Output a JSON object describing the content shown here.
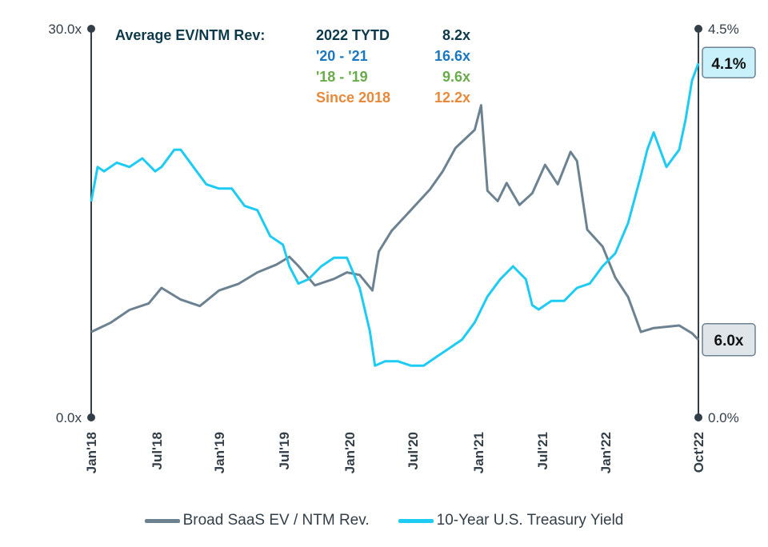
{
  "chart_data": {
    "type": "line",
    "x_ticks": [
      "Jan'18",
      "Jul'18",
      "Jan'19",
      "Jul'19",
      "Jan'20",
      "Jul'20",
      "Jan'21",
      "Jul'21",
      "Jan'22",
      "Oct'22"
    ],
    "y_left": {
      "ticks": [
        "30.0x",
        "0.0x"
      ],
      "ylim": [
        0,
        30
      ]
    },
    "y_right": {
      "ticks": [
        "4.5%",
        "0.0%"
      ],
      "ylim": [
        0,
        4.5
      ]
    },
    "annotation": {
      "header": "Average EV/NTM Rev:",
      "rows": [
        {
          "label": "2022 TYTD",
          "value": "8.2x",
          "color": "#0d3a4a"
        },
        {
          "label": "'20 - '21",
          "value": "16.6x",
          "color": "#1a78c2"
        },
        {
          "label": "'18 - '19",
          "value": "9.6x",
          "color": "#6aab4a"
        },
        {
          "label": "Since 2018",
          "value": "12.2x",
          "color": "#e8893a"
        }
      ]
    },
    "end_labels": {
      "yield": "4.1%",
      "saas": "6.0x"
    },
    "series": [
      {
        "name": "Broad SaaS EV / NTM Rev.",
        "axis": "left",
        "color": "#6d8291",
        "x": [
          2018.0,
          2018.15,
          2018.3,
          2018.45,
          2018.55,
          2018.7,
          2018.85,
          2019.0,
          2019.15,
          2019.3,
          2019.45,
          2019.55,
          2019.62,
          2019.75,
          2019.9,
          2020.0,
          2020.1,
          2020.2,
          2020.25,
          2020.35,
          2020.5,
          2020.65,
          2020.75,
          2020.85,
          2021.0,
          2021.05,
          2021.1,
          2021.18,
          2021.25,
          2021.35,
          2021.45,
          2021.55,
          2021.65,
          2021.75,
          2021.8,
          2021.88,
          2022.0,
          2022.1,
          2022.2,
          2022.3,
          2022.4,
          2022.5,
          2022.6,
          2022.7,
          2022.75
        ],
        "values": [
          6.6,
          7.3,
          8.3,
          8.8,
          10.0,
          9.1,
          8.6,
          9.8,
          10.3,
          11.2,
          11.8,
          12.4,
          11.7,
          10.2,
          10.7,
          11.2,
          11.0,
          9.8,
          12.8,
          14.4,
          16.0,
          17.6,
          19.0,
          20.8,
          22.2,
          24.1,
          17.5,
          16.7,
          18.1,
          16.4,
          17.3,
          19.5,
          18.0,
          20.5,
          19.8,
          14.5,
          13.2,
          10.8,
          9.3,
          6.6,
          6.9,
          7.0,
          7.1,
          6.5,
          6.0
        ]
      },
      {
        "name": "10-Year U.S. Treasury Yield",
        "axis": "right",
        "color": "#1ecbf2",
        "x": [
          2018.0,
          2018.05,
          2018.1,
          2018.2,
          2018.3,
          2018.4,
          2018.5,
          2018.55,
          2018.65,
          2018.7,
          2018.8,
          2018.9,
          2019.0,
          2019.1,
          2019.2,
          2019.3,
          2019.4,
          2019.5,
          2019.55,
          2019.62,
          2019.7,
          2019.8,
          2019.9,
          2020.0,
          2020.1,
          2020.18,
          2020.22,
          2020.3,
          2020.4,
          2020.5,
          2020.6,
          2020.7,
          2020.8,
          2020.9,
          2021.0,
          2021.1,
          2021.2,
          2021.3,
          2021.4,
          2021.45,
          2021.5,
          2021.6,
          2021.7,
          2021.8,
          2021.9,
          2022.0,
          2022.1,
          2022.2,
          2022.3,
          2022.35,
          2022.4,
          2022.5,
          2022.55,
          2022.6,
          2022.65,
          2022.7,
          2022.75
        ],
        "values": [
          2.5,
          2.9,
          2.85,
          2.95,
          2.9,
          3.0,
          2.85,
          2.9,
          3.1,
          3.1,
          2.9,
          2.7,
          2.65,
          2.65,
          2.45,
          2.4,
          2.1,
          2.0,
          1.75,
          1.55,
          1.6,
          1.75,
          1.85,
          1.85,
          1.5,
          1.0,
          0.6,
          0.65,
          0.65,
          0.6,
          0.6,
          0.7,
          0.8,
          0.9,
          1.1,
          1.4,
          1.6,
          1.75,
          1.6,
          1.3,
          1.25,
          1.35,
          1.35,
          1.5,
          1.55,
          1.75,
          1.9,
          2.25,
          2.8,
          3.1,
          3.3,
          2.9,
          3.0,
          3.1,
          3.45,
          3.9,
          4.1
        ]
      }
    ]
  }
}
